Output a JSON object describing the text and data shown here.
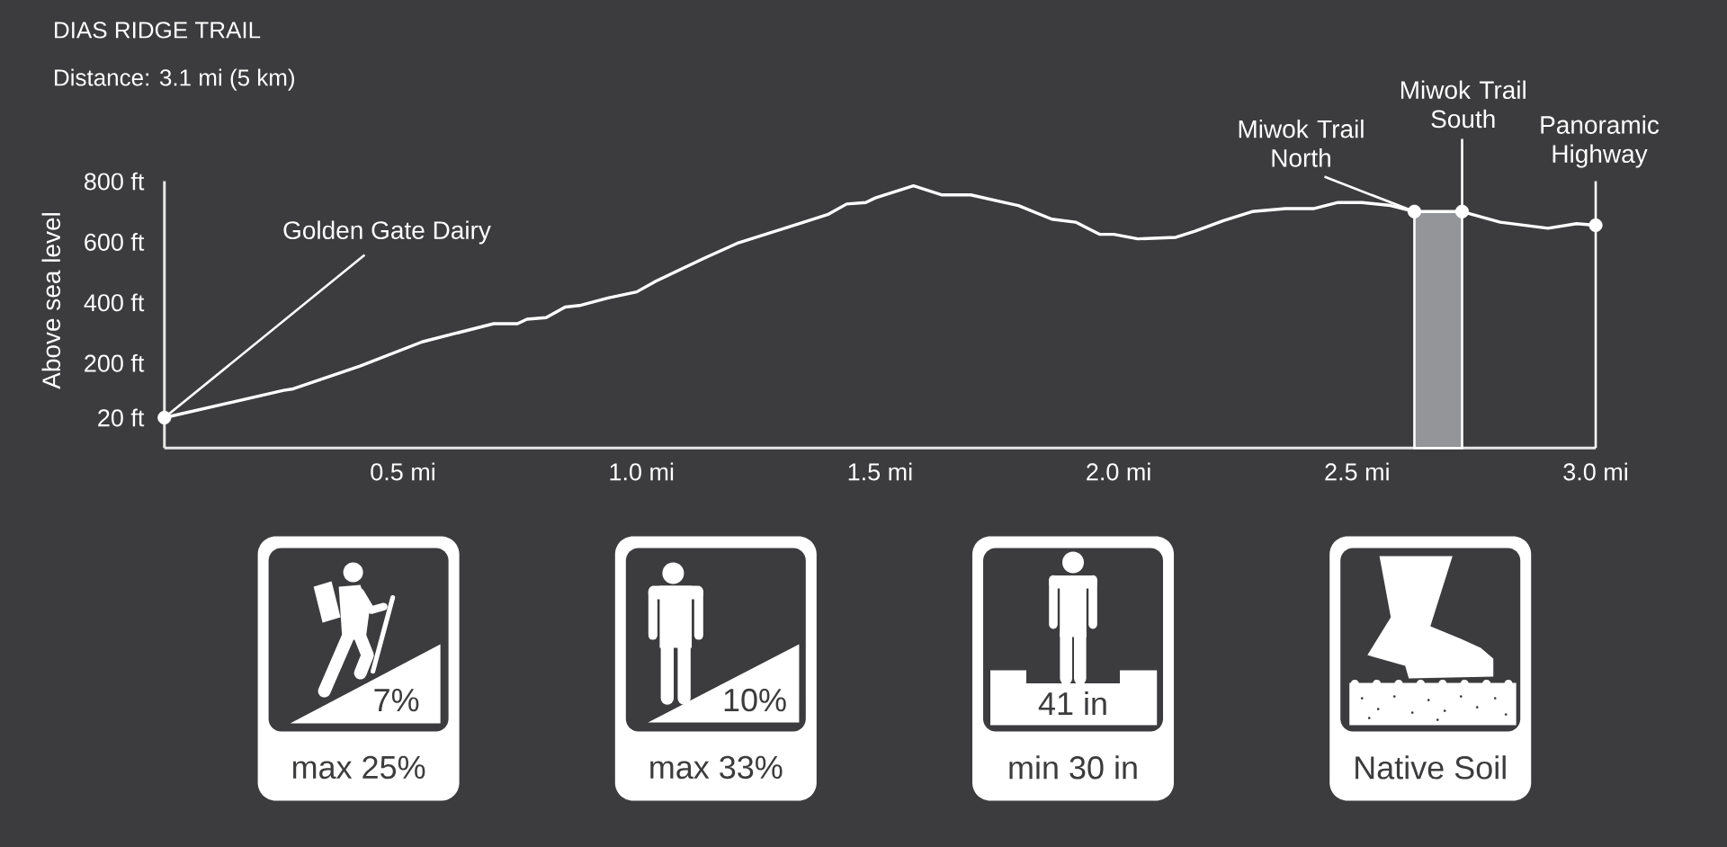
{
  "chart_data": [
    {
      "type": "line",
      "title": "DIAS RIDGE TRAIL",
      "subtitle": "Distance: 3.1 mi (5 km)",
      "ylabel": "Above sea level",
      "xlim": [
        0,
        3.0
      ],
      "ylim": [
        -80,
        800
      ],
      "xticks": [
        {
          "value": 0.5,
          "label": "0.5 mi"
        },
        {
          "value": 1.0,
          "label": "1.0 mi"
        },
        {
          "value": 1.5,
          "label": "1.5 mi"
        },
        {
          "value": 2.0,
          "label": "2.0 mi"
        },
        {
          "value": 2.5,
          "label": "2.5 mi"
        },
        {
          "value": 3.0,
          "label": "3.0 mi"
        }
      ],
      "yticks": [
        {
          "value": 20,
          "label": "20 ft"
        },
        {
          "value": 200,
          "label": "200 ft"
        },
        {
          "value": 400,
          "label": "400 ft"
        },
        {
          "value": 600,
          "label": "600 ft"
        },
        {
          "value": 800,
          "label": "800 ft"
        }
      ],
      "series": [
        {
          "type": "line",
          "color": "#ffffff",
          "x": [
            0,
            0.25,
            0.27,
            0.41,
            0.54,
            0.69,
            0.74,
            0.76,
            0.8,
            0.84,
            0.87,
            0.93,
            0.99,
            1.03,
            1.13,
            1.2,
            1.34,
            1.39,
            1.43,
            1.47,
            1.49,
            1.57,
            1.63,
            1.69,
            1.76,
            1.79,
            1.86,
            1.91,
            1.96,
            1.99,
            2.04,
            2.12,
            2.16,
            2.22,
            2.28,
            2.35,
            2.41,
            2.46,
            2.51,
            2.57,
            2.62,
            2.72,
            2.8,
            2.9,
            2.96,
            3.0
          ],
          "values": [
            20,
            110,
            115,
            190,
            270,
            330,
            330,
            345,
            350,
            385,
            390,
            415,
            435,
            470,
            545,
            595,
            665,
            690,
            725,
            730,
            745,
            785,
            755,
            755,
            730,
            720,
            675,
            665,
            625,
            625,
            610,
            615,
            635,
            670,
            700,
            710,
            710,
            730,
            730,
            720,
            700,
            700,
            665,
            645,
            660,
            655
          ]
        },
        {
          "type": "scatter",
          "color": "#ffffff",
          "x": [
            0,
            2.62,
            2.72,
            3.0
          ],
          "values": [
            20,
            700,
            700,
            655
          ]
        }
      ],
      "bands": [
        {
          "axis": "x",
          "from": 2.62,
          "to": 2.72,
          "color": "#939598"
        }
      ],
      "ref_lines": [
        {
          "axis": "x",
          "value": 3.0,
          "color": "#ffffff"
        }
      ],
      "annotations": [
        {
          "text": "Golden Gate Dairy",
          "x": 0,
          "y": 20
        },
        {
          "text": "Miwok Trail North",
          "x": 2.62,
          "y": 700
        },
        {
          "text": "Miwok Trail South",
          "x": 2.72,
          "y": 700
        },
        {
          "text": "Panoramic Highway",
          "x": 3.0,
          "y": 655
        }
      ]
    },
    {
      "type": "other",
      "annotations": [
        "7%",
        "max 25%",
        "10%",
        "max 33%",
        "41 in",
        "min 30 in",
        "Native Soil"
      ]
    }
  ]
}
